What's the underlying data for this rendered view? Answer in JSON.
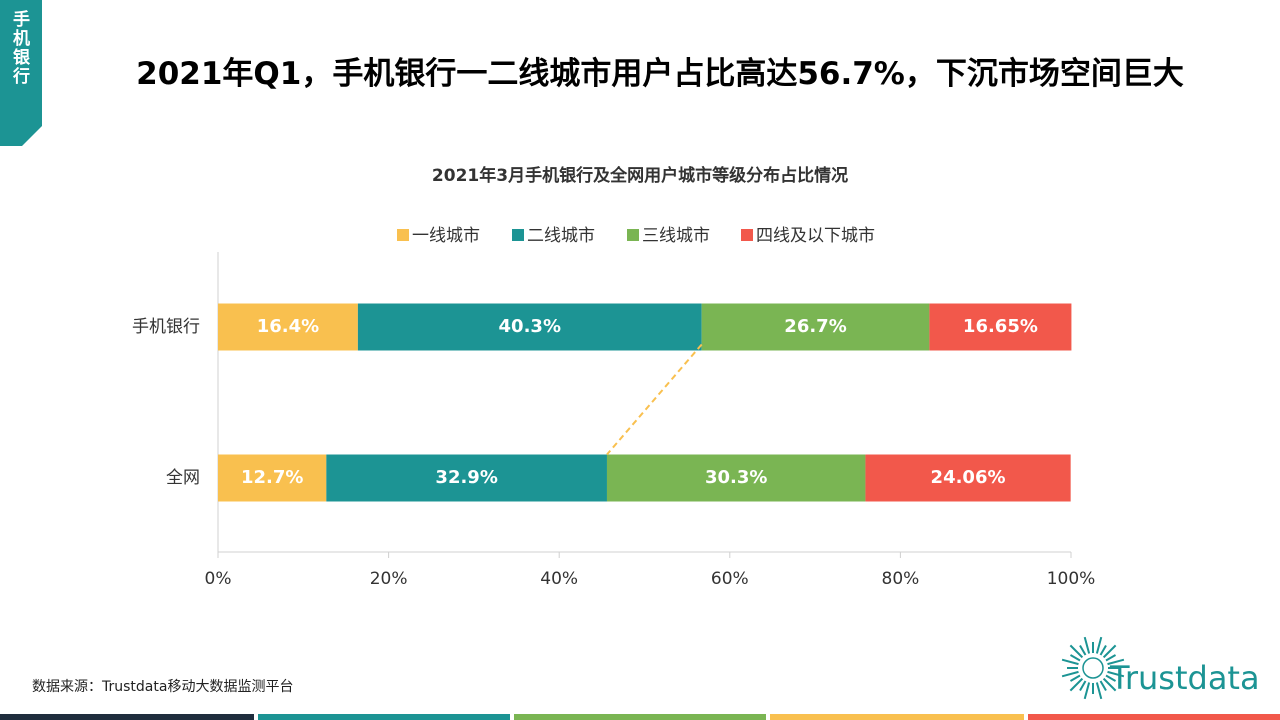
{
  "header": {
    "tab": "手机银行",
    "title": "2021年Q1，手机银行一二线城市用户占比高达56.7%，下沉市场空间巨大"
  },
  "footer": {
    "source": "数据来源：Trustdata移动大数据监测平台",
    "logo": "Trustdata"
  },
  "chart_data": {
    "type": "stacked-bar-horizontal",
    "title": "2021年3月手机银行及全网用户城市等级分布占比情况",
    "categories": [
      "手机银行",
      "全网"
    ],
    "series": [
      {
        "name": "一线城市",
        "color": "#F9C04F",
        "values": [
          16.4,
          12.7
        ],
        "value_labels": [
          "16.4%",
          "12.7%"
        ]
      },
      {
        "name": "二线城市",
        "color": "#1C9494",
        "values": [
          40.3,
          32.9
        ],
        "value_labels": [
          "40.3%",
          "32.9%"
        ]
      },
      {
        "name": "三线城市",
        "color": "#7AB553",
        "values": [
          26.7,
          30.3
        ],
        "value_labels": [
          "26.7%",
          "30.3%"
        ]
      },
      {
        "name": "四线及以下城市",
        "color": "#F2584B",
        "values": [
          16.65,
          24.06
        ],
        "value_labels": [
          "16.65%",
          "24.06%"
        ]
      }
    ],
    "xlim": [
      0,
      100
    ],
    "xticks": [
      {
        "value": 0,
        "label": "0%"
      },
      {
        "value": 20,
        "label": "20%"
      },
      {
        "value": 40,
        "label": "40%"
      },
      {
        "value": 60,
        "label": "60%"
      },
      {
        "value": 80,
        "label": "80%"
      },
      {
        "value": 100,
        "label": "100%"
      }
    ],
    "legend": "top"
  }
}
